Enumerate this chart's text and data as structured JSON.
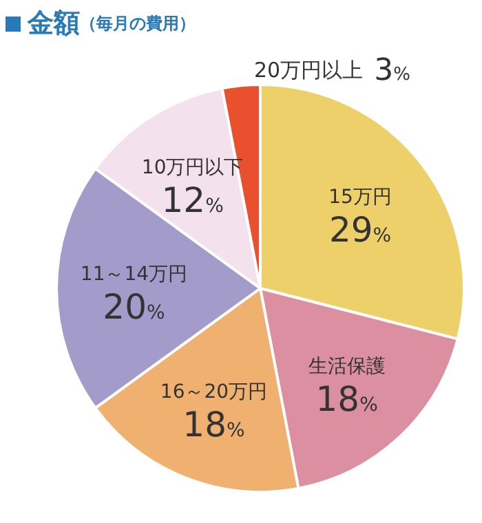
{
  "chart_data": {
    "type": "pie",
    "title": "金額",
    "subtitle": "（毎月の費用）",
    "categories": [
      "15万円",
      "生活保護",
      "16～20万円",
      "11～14万円",
      "10万円以下",
      "20万円以上"
    ],
    "values": [
      29,
      18,
      18,
      20,
      12,
      3
    ],
    "value_labels": [
      "29%",
      "18%",
      "18%",
      "20%",
      "12%",
      "3%"
    ],
    "colors": [
      "#edd06a",
      "#dc8fa0",
      "#f0b070",
      "#a39ccb",
      "#f3e2ee",
      "#e8502e"
    ],
    "legend": false
  }
}
